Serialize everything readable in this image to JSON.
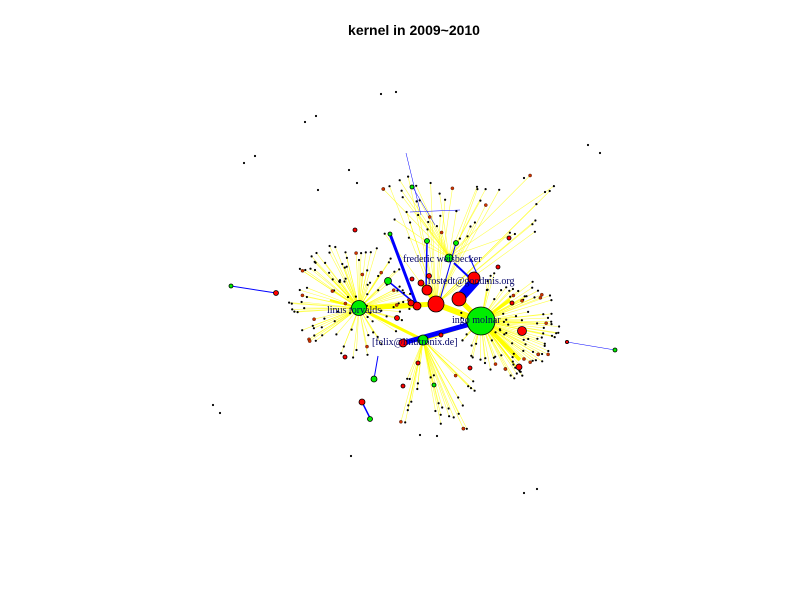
{
  "title": "kernel in 2009~2010",
  "colors": {
    "node_green": "#00ee00",
    "node_red": "#ff0000",
    "edge_blue": "#0000ff",
    "edge_yellow": "#ffff00",
    "label": "#000066"
  },
  "labels": [
    "frederic weisbecker",
    "rostedt@goodmis.org",
    "linus torvalds",
    "ingo molnar",
    "[felix@linutronix.de]"
  ]
}
